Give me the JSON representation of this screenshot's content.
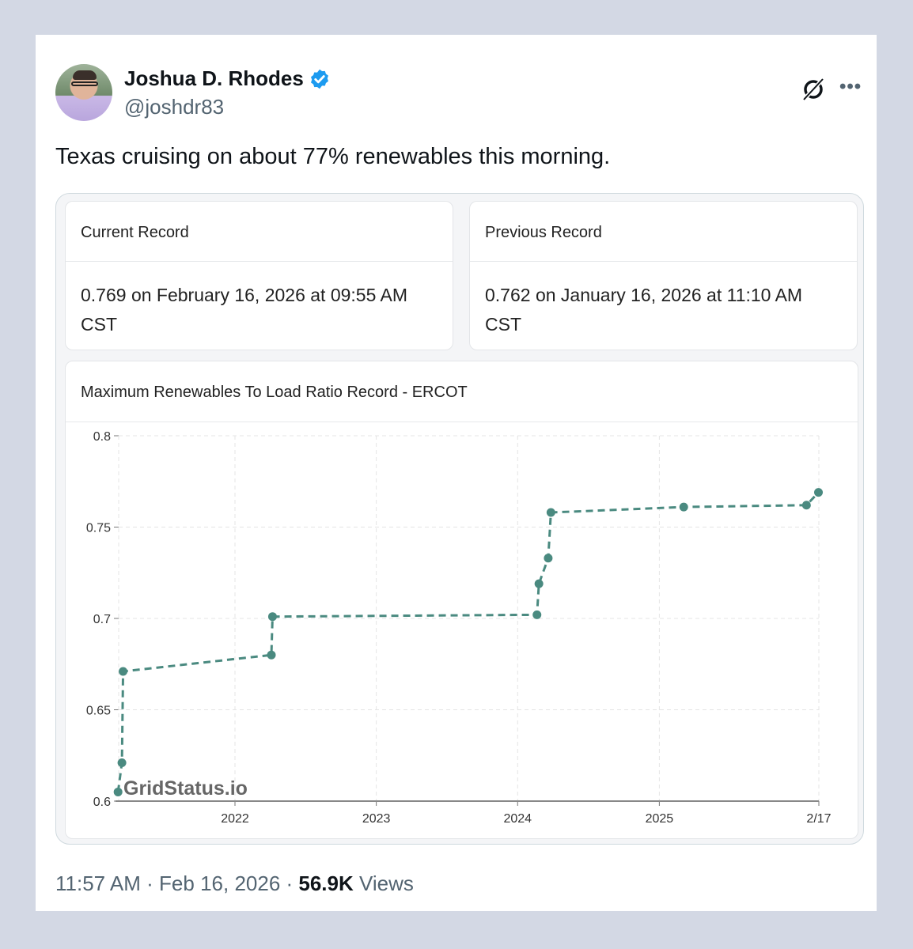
{
  "author": {
    "name": "Joshua D. Rhodes",
    "handle": "@joshdr83",
    "verified": true
  },
  "icons": {
    "verified": "verified-badge-icon",
    "grok": "grok-icon",
    "more": "more-icon"
  },
  "tweet_text": "Texas cruising on about 77% renewables this morning.",
  "records": {
    "current": {
      "title": "Current Record",
      "value": "0.769 on February 16, 2026 at 09:55 AM",
      "tz": "CST"
    },
    "previous": {
      "title": "Previous Record",
      "value": "0.762 on January 16, 2026 at 11:10 AM",
      "tz": "CST"
    }
  },
  "chart_data": {
    "type": "line",
    "title": "Maximum Renewables To Load Ratio Record - ERCOT",
    "watermark": "GridStatus.io",
    "line_style": "dashed-with-markers",
    "color": "#4a8a80",
    "grid": true,
    "ylim": [
      0.6,
      0.8
    ],
    "yticks": [
      "0.6",
      "0.65",
      "0.7",
      "0.75",
      "0.8"
    ],
    "xticks": [
      "2022",
      "2023",
      "2024",
      "2025",
      "2/17"
    ],
    "points": [
      {
        "x": "2021-03-05",
        "y": 0.605
      },
      {
        "x": "2021-03-15",
        "y": 0.621
      },
      {
        "x": "2021-03-18",
        "y": 0.671
      },
      {
        "x": "2022-04-05",
        "y": 0.68
      },
      {
        "x": "2022-04-08",
        "y": 0.701
      },
      {
        "x": "2024-02-20",
        "y": 0.702
      },
      {
        "x": "2024-02-25",
        "y": 0.719
      },
      {
        "x": "2024-03-20",
        "y": 0.733
      },
      {
        "x": "2024-03-27",
        "y": 0.758
      },
      {
        "x": "2025-03-05",
        "y": 0.761
      },
      {
        "x": "2026-01-16",
        "y": 0.762
      },
      {
        "x": "2026-02-16",
        "y": 0.769
      }
    ]
  },
  "footer": {
    "time": "11:57 AM",
    "date": "Feb 16, 2026",
    "views_count": "56.9K",
    "views_label": "Views"
  }
}
